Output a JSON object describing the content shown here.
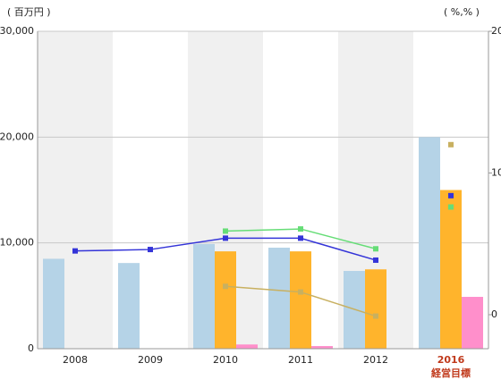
{
  "chart_data": {
    "type": "bar",
    "y_unit_label": "( 百万円 )",
    "y2_unit_label": "( %,% )",
    "categories": [
      "2008",
      "2009",
      "2010",
      "2011",
      "2012",
      {
        "label": "2016",
        "note": "経営目標",
        "color": "#c0391b"
      }
    ],
    "ylim": [
      0,
      30000
    ],
    "yticks": [
      0,
      {
        "value": 10000,
        "label": "10,000"
      },
      {
        "value": 20000,
        "label": "20,000"
      },
      {
        "value": 30000,
        "label": "30,000"
      }
    ],
    "y2lim": [
      -2.4,
      20
    ],
    "y2ticks": [
      0,
      10,
      20
    ],
    "grid": true,
    "band_shade": "#f0f0f0",
    "series": [
      {
        "type": "bar",
        "color": "#b5d3e7",
        "values": [
          8500,
          8100,
          9900,
          9550,
          7350,
          20000
        ]
      },
      {
        "type": "bar",
        "color": "#ffb42c",
        "values": [
          null,
          null,
          9200,
          9200,
          7500,
          15000
        ]
      },
      {
        "type": "bar",
        "color": "#ff8fcb",
        "values": [
          null,
          null,
          400,
          250,
          null,
          4900
        ]
      },
      {
        "type": "line",
        "axis": "y2",
        "color": "#3434d8",
        "values": [
          4.5,
          4.6,
          5.4,
          5.4,
          3.85,
          null
        ]
      },
      {
        "type": "line",
        "axis": "y2",
        "color": "#66dd77",
        "values": [
          null,
          null,
          5.9,
          6.05,
          4.65,
          null
        ]
      },
      {
        "type": "line",
        "axis": "y2",
        "color": "#c8b060",
        "values": [
          null,
          null,
          2.0,
          1.6,
          -0.1,
          null
        ]
      },
      {
        "type": "marker",
        "axis": "y2",
        "color": "#3434d8",
        "values": [
          null,
          null,
          null,
          null,
          null,
          8.4
        ]
      },
      {
        "type": "marker",
        "axis": "y2",
        "color": "#66dd77",
        "values": [
          null,
          null,
          null,
          null,
          null,
          7.6
        ]
      },
      {
        "type": "marker",
        "axis": "y2",
        "color": "#c8b060",
        "values": [
          null,
          null,
          null,
          null,
          null,
          12.0
        ]
      }
    ]
  }
}
